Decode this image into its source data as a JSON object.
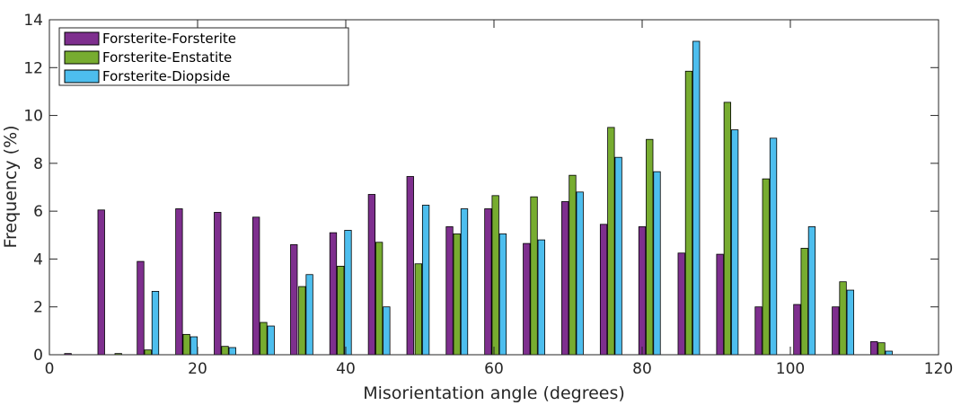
{
  "chart_data": {
    "type": "bar",
    "xlabel": "Misorientation angle (degrees)",
    "ylabel": "Frequency (%)",
    "xlim": [
      0,
      120
    ],
    "ylim": [
      0,
      14
    ],
    "xticks": [
      0,
      20,
      40,
      60,
      80,
      100,
      120
    ],
    "yticks": [
      0,
      2,
      4,
      6,
      8,
      10,
      12,
      14
    ],
    "grid": false,
    "legend_position": "top-left",
    "series": [
      {
        "name": "Forsterite-Forsterite",
        "color": "#7e2f8e",
        "x": [
          2.5,
          7.0,
          12.3,
          17.5,
          22.7,
          27.9,
          33.0,
          38.3,
          43.5,
          48.7,
          54.0,
          59.2,
          64.4,
          69.6,
          74.8,
          80.0,
          85.3,
          90.5,
          95.7,
          100.9,
          106.1,
          111.3
        ],
        "values": [
          0.05,
          6.05,
          3.9,
          6.1,
          5.95,
          5.75,
          4.6,
          5.1,
          6.7,
          7.45,
          5.35,
          6.1,
          4.65,
          6.4,
          5.45,
          5.35,
          4.25,
          4.2,
          2.0,
          2.1,
          2.0,
          0.55
        ]
      },
      {
        "name": "Forsterite-Enstatite",
        "color": "#77ac30",
        "x": [
          9.3,
          13.3,
          18.5,
          23.7,
          28.9,
          34.1,
          39.3,
          44.5,
          49.8,
          55.0,
          60.2,
          65.4,
          70.6,
          75.8,
          81.0,
          86.3,
          91.5,
          96.7,
          101.9,
          107.1,
          112.3
        ],
        "values": [
          0.05,
          0.2,
          0.85,
          0.35,
          1.35,
          2.85,
          3.7,
          4.7,
          3.8,
          5.05,
          6.65,
          6.6,
          7.5,
          9.5,
          9.0,
          11.85,
          10.55,
          7.35,
          4.45,
          3.05,
          0.5
        ]
      },
      {
        "name": "Forsterite-Diopside",
        "color": "#4dbeee",
        "x": [
          14.3,
          19.5,
          24.7,
          29.9,
          35.1,
          40.3,
          45.5,
          50.8,
          56.0,
          61.2,
          66.4,
          71.6,
          76.8,
          82.0,
          87.3,
          92.5,
          97.7,
          102.9,
          108.1,
          113.3
        ],
        "values": [
          2.65,
          0.75,
          0.3,
          1.2,
          3.35,
          5.2,
          2.0,
          6.25,
          6.1,
          5.05,
          4.8,
          6.8,
          8.25,
          7.65,
          13.1,
          9.4,
          9.05,
          5.35,
          2.7,
          0.15
        ]
      }
    ]
  }
}
